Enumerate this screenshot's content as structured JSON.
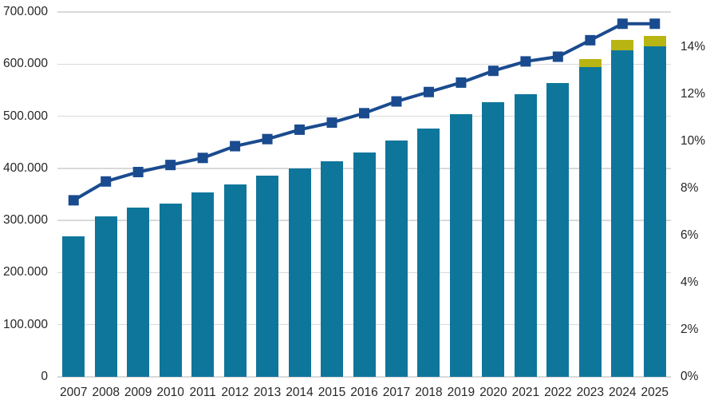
{
  "chart_data": {
    "type": "combo",
    "title": "",
    "categories": [
      "2007",
      "2008",
      "2009",
      "2010",
      "2011",
      "2012",
      "2013",
      "2014",
      "2015",
      "2016",
      "2017",
      "2018",
      "2019",
      "2020",
      "2021",
      "2022",
      "2023",
      "2024",
      "2025"
    ],
    "series": [
      {
        "name": "main-count-bars",
        "type": "bar",
        "axis": "left",
        "color": "#0f769b",
        "values": [
          270000,
          308000,
          325000,
          332000,
          354000,
          369000,
          386000,
          400000,
          413000,
          431000,
          454000,
          476000,
          504000,
          527000,
          542000,
          564000,
          595000,
          626000,
          634000
        ]
      },
      {
        "name": "additional-cap-bars",
        "type": "bar-stacked-cap",
        "axis": "left",
        "color": "#b8b513",
        "values": [
          0,
          0,
          0,
          0,
          0,
          0,
          0,
          0,
          0,
          0,
          0,
          0,
          0,
          0,
          0,
          0,
          15000,
          20000,
          20000
        ]
      },
      {
        "name": "share-percent-line",
        "type": "line",
        "axis": "right",
        "color": "#1a4b8f",
        "marker": "square",
        "values": [
          7.5,
          8.3,
          8.7,
          9.0,
          9.3,
          9.8,
          10.1,
          10.5,
          10.8,
          11.2,
          11.7,
          12.1,
          12.5,
          13.0,
          13.4,
          13.6,
          14.3,
          15.0,
          15.0
        ]
      }
    ],
    "left_axis": {
      "min": 0,
      "max": 700000,
      "tick_interval": 100000,
      "tick_labels_top_to_bottom": [
        "700.000",
        "600.000",
        "500.000",
        "400.000",
        "300.000",
        "200.000",
        "100.000",
        "0"
      ]
    },
    "right_axis": {
      "min": 0,
      "max_percent_at_plot_top": 15.5,
      "tick_interval_percent": 2,
      "tick_labels_top_to_bottom": [
        "14%",
        "12%",
        "10%",
        "8%",
        "6%",
        "4%",
        "2%",
        "0%"
      ]
    },
    "grid": "horizontal",
    "legend": "none",
    "colors": {
      "bar_teal": "#0f769b",
      "cap_olive": "#b8b513",
      "line_navy": "#1a4b8f",
      "gridline_gray": "#d9d9d9",
      "label_text": "#262626",
      "background": "#ffffff"
    }
  }
}
